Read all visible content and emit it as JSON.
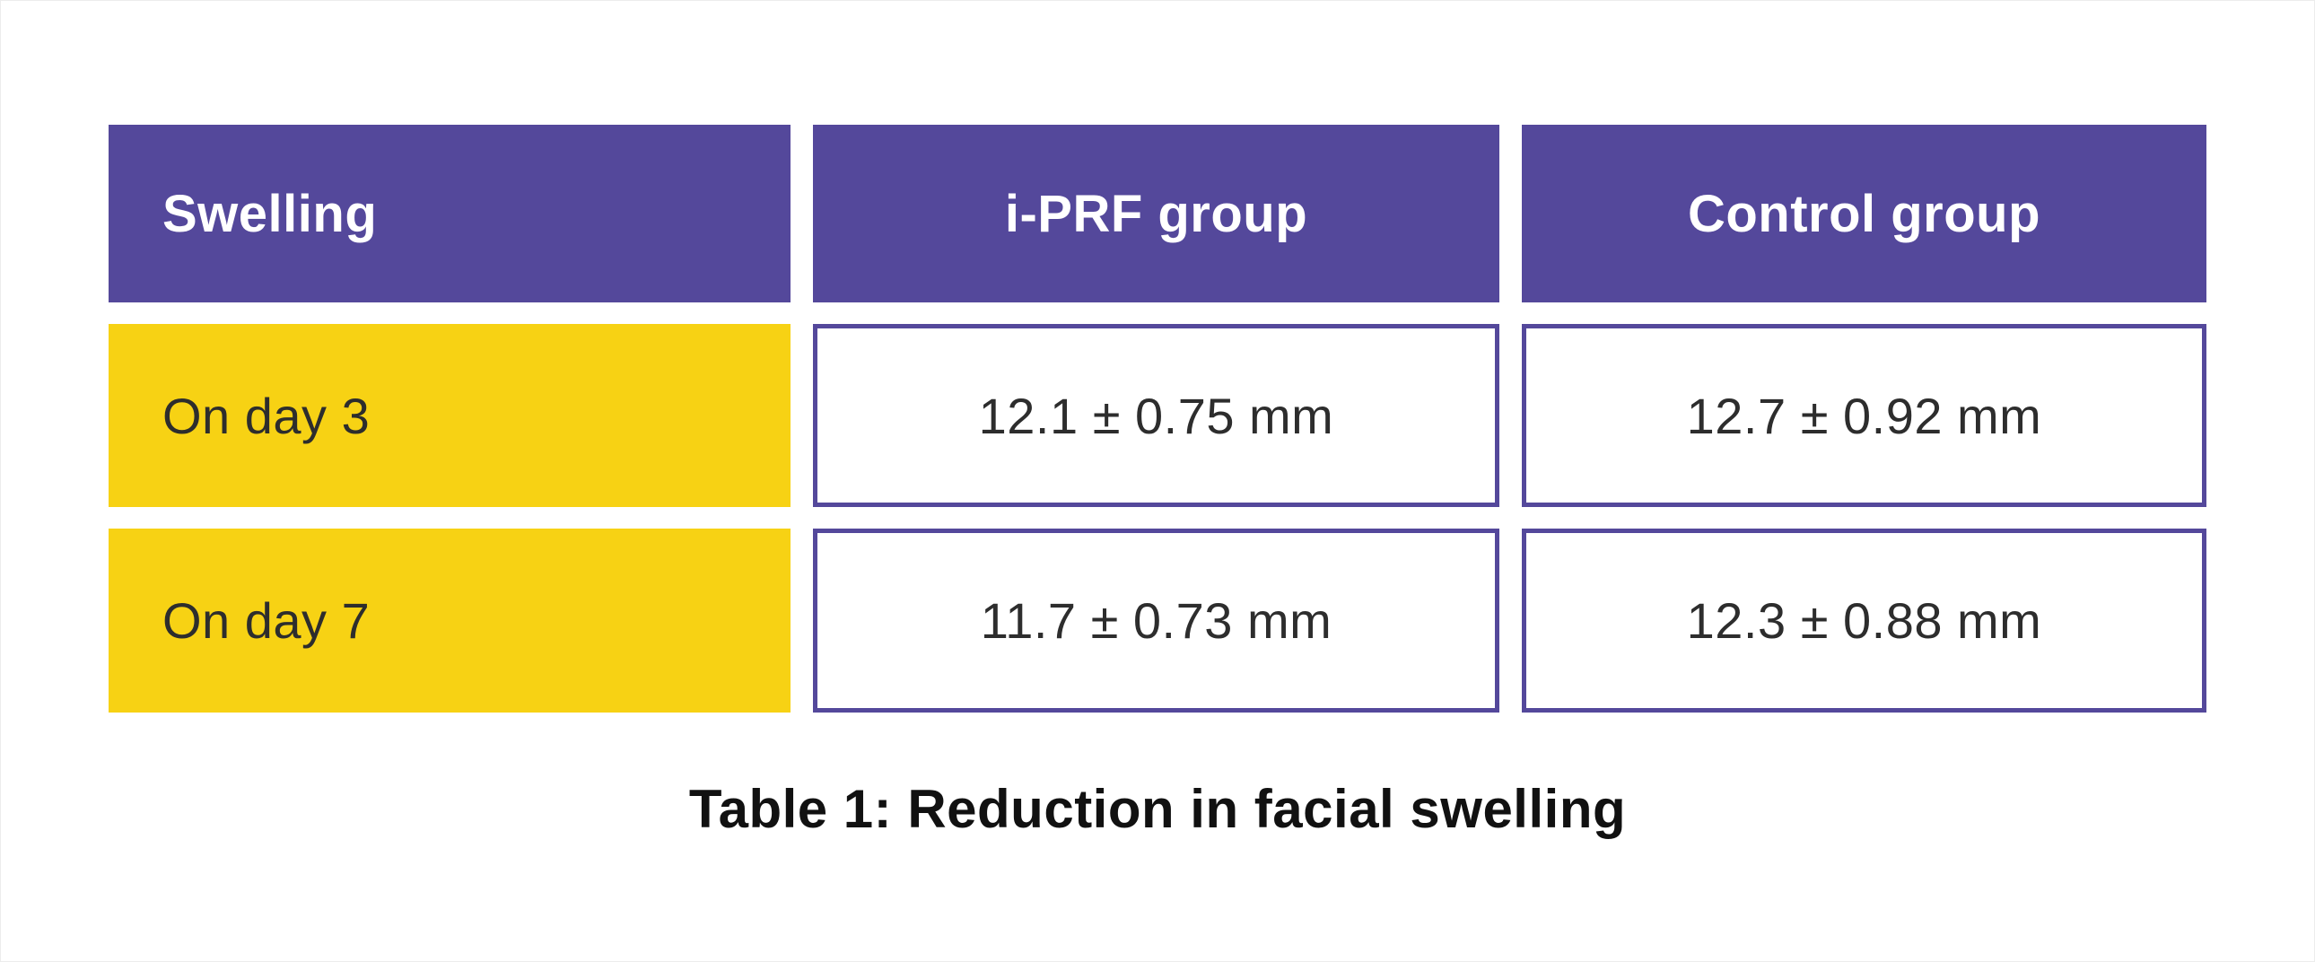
{
  "table": {
    "caption": "Table 1: Reduction in facial swelling",
    "headers": [
      "Swelling",
      "i-PRF group",
      "Control group"
    ],
    "rows": [
      [
        "On day 3",
        "12.1 ± 0.75 mm",
        "12.7 ± 0.92 mm"
      ],
      [
        "On day 7",
        "11.7 ± 0.73 mm",
        "12.3 ± 0.88 mm"
      ]
    ]
  },
  "colors": {
    "header_bg": "#54489B",
    "header_text": "#ffffff",
    "row_label_bg": "#F7D214",
    "cell_border": "#54489B",
    "body_text": "#2d2d2d",
    "caption_text": "#111111"
  },
  "chart_data": {
    "type": "table",
    "title": "Table 1: Reduction in facial swelling",
    "columns": [
      "Swelling",
      "i-PRF group",
      "Control group"
    ],
    "rows": [
      [
        "On day 3",
        "12.1 ± 0.75 mm",
        "12.7 ± 0.92 mm"
      ],
      [
        "On day 7",
        "11.7 ± 0.73 mm",
        "12.3 ± 0.88 mm"
      ]
    ],
    "values": {
      "unit": "mm",
      "iprf_group": {
        "day3": {
          "mean": 12.1,
          "sd": 0.75
        },
        "day7": {
          "mean": 11.7,
          "sd": 0.73
        }
      },
      "control_group": {
        "day3": {
          "mean": 12.7,
          "sd": 0.92
        },
        "day7": {
          "mean": 12.3,
          "sd": 0.88
        }
      }
    },
    "layout": {
      "header_style": "purple filled",
      "row_label_style": "yellow filled",
      "value_cell_style": "white with purple border",
      "caption_position": "below table, centered, bold"
    }
  }
}
